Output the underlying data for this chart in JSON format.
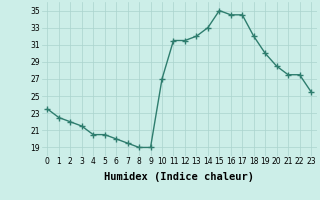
{
  "x": [
    0,
    1,
    2,
    3,
    4,
    5,
    6,
    7,
    8,
    9,
    10,
    11,
    12,
    13,
    14,
    15,
    16,
    17,
    18,
    19,
    20,
    21,
    22,
    23
  ],
  "y": [
    23.5,
    22.5,
    22.0,
    21.5,
    20.5,
    20.5,
    20.0,
    19.5,
    19.0,
    19.0,
    27.0,
    31.5,
    31.5,
    32.0,
    33.0,
    35.0,
    34.5,
    34.5,
    32.0,
    30.0,
    28.5,
    27.5,
    27.5,
    25.5
  ],
  "line_color": "#2e7d6e",
  "marker": "+",
  "marker_size": 4,
  "marker_linewidth": 1.0,
  "background_color": "#cceee8",
  "grid_color": "#aad4ce",
  "xlabel": "Humidex (Indice chaleur)",
  "xlim": [
    -0.5,
    23.5
  ],
  "ylim": [
    18,
    36
  ],
  "yticks": [
    19,
    21,
    23,
    25,
    27,
    29,
    31,
    33,
    35
  ],
  "xticks": [
    0,
    1,
    2,
    3,
    4,
    5,
    6,
    7,
    8,
    9,
    10,
    11,
    12,
    13,
    14,
    15,
    16,
    17,
    18,
    19,
    20,
    21,
    22,
    23
  ],
  "tick_fontsize": 5.5,
  "xlabel_fontsize": 7.5,
  "linewidth": 1.0
}
